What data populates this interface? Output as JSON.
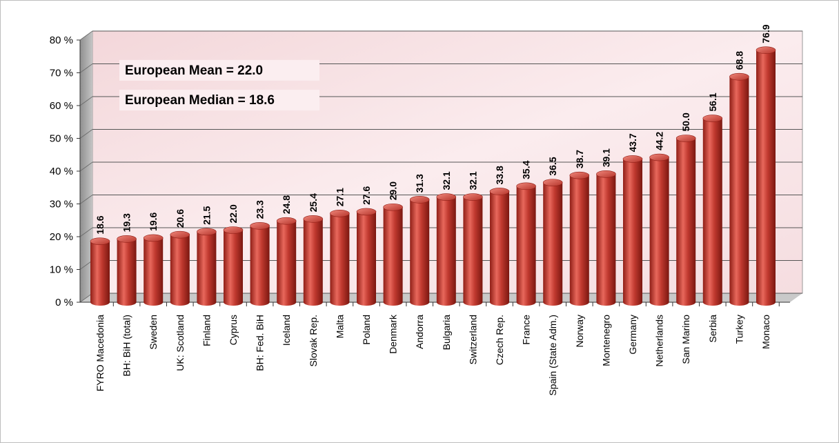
{
  "chart_data": {
    "type": "bar",
    "categories": [
      "FYRO Macedonia",
      "BH: BiH (total)",
      "Sweden",
      "UK: Scotland",
      "Finland",
      "Cyprus",
      "BH: Fed. BiH",
      "Iceland",
      "Slovak Rep.",
      "Malta",
      "Poland",
      "Denmark",
      "Andorra",
      "Bulgaria",
      "Switzerland",
      "Czech Rep.",
      "France",
      "Spain (State Adm.)",
      "Norway",
      "Montenegro",
      "Germany",
      "Netherlands",
      "San Marino",
      "Serbia",
      "Turkey",
      "Monaco"
    ],
    "values": [
      18.6,
      19.3,
      19.6,
      20.6,
      21.5,
      22.0,
      23.3,
      24.8,
      25.4,
      27.1,
      27.6,
      29.0,
      31.3,
      32.1,
      32.1,
      33.8,
      35.4,
      36.5,
      38.7,
      39.1,
      43.7,
      44.2,
      50.0,
      56.1,
      68.8,
      76.9
    ],
    "data_labels": [
      "18.6",
      "19.3",
      "19.6",
      "20.6",
      "21.5",
      "22.0",
      "23.3",
      "24.8",
      "25.4",
      "27.1",
      "27.6",
      "29.0",
      "31.3",
      "32.1",
      "32.1",
      "33.8",
      "35.4",
      "36.5",
      "38.7",
      "39.1",
      "43.7",
      "44.2",
      "50.0",
      "56.1",
      "68.8",
      "76.9"
    ],
    "yticks": [
      0,
      10,
      20,
      30,
      40,
      50,
      60,
      70,
      80
    ],
    "ytick_labels": [
      "0 %",
      "10 %",
      "20 %",
      "30 %",
      "40 %",
      "50 %",
      "60 %",
      "70 %",
      "80 %"
    ],
    "ylim": [
      0,
      80
    ],
    "title": "",
    "xlabel": "",
    "ylabel": "",
    "grid": true,
    "annotations": [
      "European Mean = 22.0",
      "European Median = 18.6"
    ],
    "colors": {
      "bar": "#c0392f",
      "bar_light": "#e8685c",
      "bar_dark": "#8f1e16",
      "wall": "#f7e4e6",
      "grid": "#555555"
    }
  }
}
